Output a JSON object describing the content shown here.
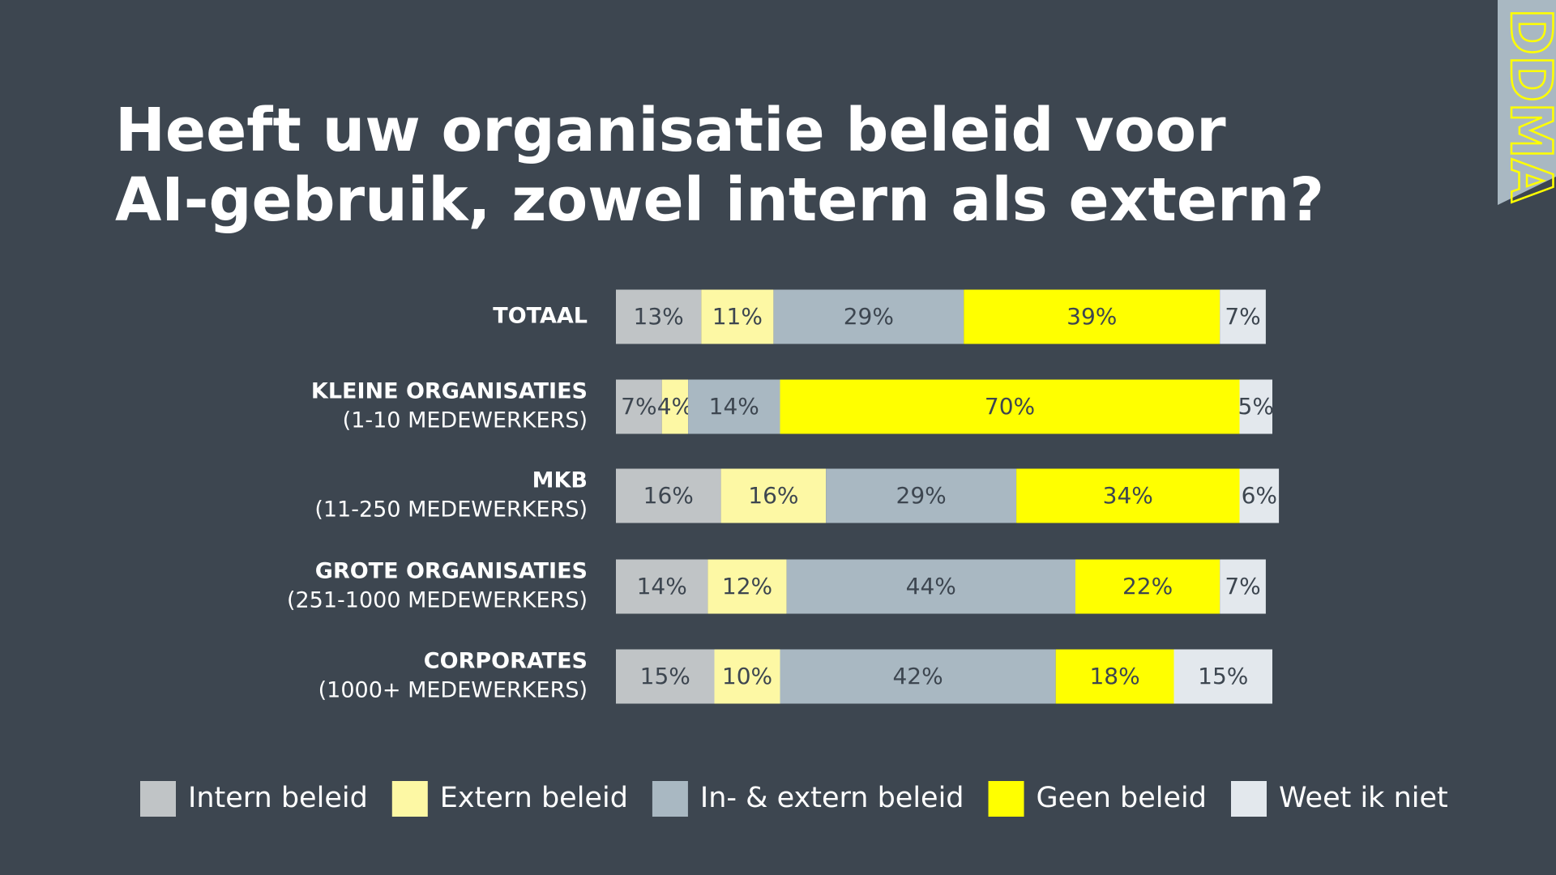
{
  "chart_data": {
    "type": "stacked-bar-horizontal",
    "title": "Heeft uw organisatie beleid voor AI-gebruik, zowel intern als extern?",
    "logo": "DDMA",
    "categories": [
      [
        "TOTAAL"
      ],
      [
        "KLEINE ORGANISATIES",
        "(1-10 MEDEWERKERS)"
      ],
      [
        "MKB",
        "(11-250 MEDEWERKERS)"
      ],
      [
        "GROTE ORGANISATIES",
        "(251-1000 MEDEWERKERS)"
      ],
      [
        "CORPORATES",
        "(1000+ MEDEWERKERS)"
      ]
    ],
    "xlim": [
      0,
      100
    ],
    "series": [
      {
        "name": "Intern beleid",
        "color": "#c0c4c6",
        "values": [
          13,
          7,
          16,
          14,
          15
        ],
        "value_labels": [
          "13%",
          "7%",
          "16%",
          "14%",
          "15%"
        ]
      },
      {
        "name": "Extern beleid",
        "color": "#fdf8a4",
        "values": [
          11,
          4,
          16,
          12,
          10
        ],
        "value_labels": [
          "11%",
          "4%",
          "16%",
          "12%",
          "10%"
        ]
      },
      {
        "name": "In- & extern beleid",
        "color": "#a9b8c2",
        "values": [
          29,
          14,
          29,
          44,
          42
        ],
        "value_labels": [
          "29%",
          "14%",
          "29%",
          "44%",
          "42%"
        ]
      },
      {
        "name": "Geen beleid",
        "color": "#ffff00",
        "values": [
          39,
          70,
          34,
          22,
          18
        ],
        "value_labels": [
          "39%",
          "70%",
          "34%",
          "22%",
          "18%"
        ]
      },
      {
        "name": "Weet ik niet",
        "color": "#e3e8ed",
        "values": [
          7,
          5,
          6,
          7,
          15
        ],
        "value_labels": [
          "7%",
          "5%",
          "6%",
          "7%",
          "15%"
        ]
      }
    ]
  }
}
